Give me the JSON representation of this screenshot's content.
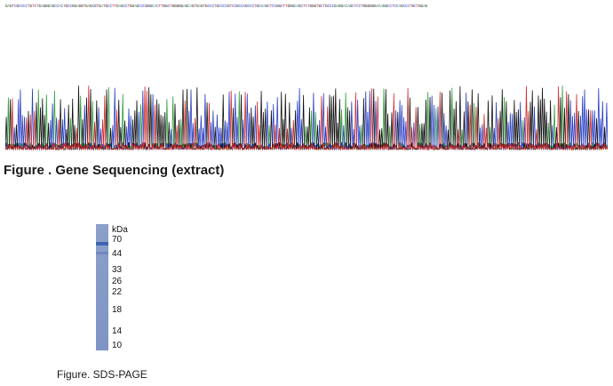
{
  "sequence_header": "GAGTCGCCCCTGTCTGAGGGAGCCACTGCCGGAGGTGAGCGTGATGCCTTGAGCCTGGAGCCCGGGCACTTGGCTGGGGGAGCAGTGAGTGCCCTGCCCCGTCCGCCCGCCCTGCCAGCTCCGGCTTGGGCAGCTCTGGGTGCTGCCCGAGGACAGCTCCTGGGGGGACAGGCCTCCAGCCCTGCTGGAG",
  "colors": {
    "A": "#2e9e3a",
    "C": "#2a3fc4",
    "G": "#111111",
    "T": "#d12a2a",
    "band": "#3f64b5"
  },
  "figure1_caption": "Figure . Gene Sequencing (extract)",
  "gel": {
    "unit_label": "kDa",
    "markers": [
      "70",
      "44",
      "33",
      "26",
      "22",
      "18",
      "14",
      "10"
    ]
  },
  "figure2_caption": "Figure. SDS-PAGE"
}
